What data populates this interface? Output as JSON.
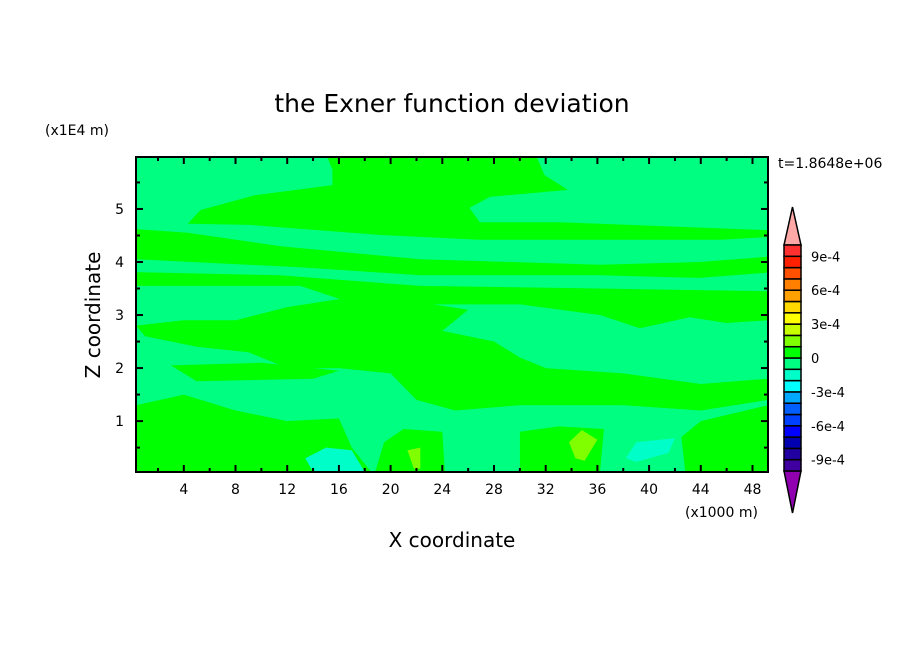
{
  "chart_data": {
    "type": "heatmap",
    "title": "the Exner function deviation",
    "xlabel": "X coordinate",
    "ylabel": "Z coordinate",
    "x_unit": "(x1000 m)",
    "y_unit": "(x1E4 m)",
    "time_label": "t=1.8648e+06",
    "xlim": [
      0.3,
      49.2
    ],
    "ylim": [
      0.04,
      5.98
    ],
    "x_ticks": [
      4,
      8,
      12,
      16,
      20,
      24,
      28,
      32,
      36,
      40,
      44,
      48
    ],
    "y_ticks": [
      1,
      2,
      3,
      4,
      5
    ],
    "background_level": [
      -0.0001,
      0
    ],
    "colorbar": {
      "levels": [
        -0.001,
        -0.0009,
        -0.0008,
        -0.0007,
        -0.0006,
        -0.0005,
        -0.0004,
        -0.0003,
        -0.0002,
        -0.0001,
        0,
        0.0001,
        0.0002,
        0.0003,
        0.0004,
        0.0005,
        0.0006,
        0.0007,
        0.0008,
        0.0009,
        0.001
      ],
      "colors": [
        "#4000a0",
        "#2000a0",
        "#0000b0",
        "#0000ff",
        "#0040ff",
        "#0060ff",
        "#00a8ff",
        "#00ffff",
        "#00ffc8",
        "#00ff80",
        "#00ff00",
        "#80ff00",
        "#c8ff00",
        "#ffff00",
        "#ffd800",
        "#ffa000",
        "#ff8000",
        "#ff5000",
        "#ff2000",
        "#ff3030"
      ],
      "under_color": "#9000b0",
      "over_color": "#ffa8a8",
      "tick_values": [
        0.0009,
        0.0006,
        0.0003,
        0,
        -0.0003,
        -0.0006,
        -0.0009
      ],
      "tick_labels": [
        "9e-4",
        "6e-4",
        "3e-4",
        "0",
        "-3e-4",
        "-6e-4",
        "-9e-4"
      ]
    },
    "regions": [
      {
        "level": [
          0,
          0.0001
        ],
        "points": [
          [
            15.1,
            5.98
          ],
          [
            31.3,
            5.98
          ],
          [
            31.9,
            5.64
          ],
          [
            33.7,
            5.36
          ],
          [
            27.7,
            5.23
          ],
          [
            26.1,
            5.02
          ],
          [
            26.9,
            4.75
          ],
          [
            33.1,
            4.75
          ],
          [
            49.2,
            4.6
          ],
          [
            49.2,
            4.47
          ],
          [
            45.5,
            4.42
          ],
          [
            36.2,
            4.42
          ],
          [
            26.9,
            4.42
          ],
          [
            19.2,
            4.51
          ],
          [
            9.1,
            4.7
          ],
          [
            4.3,
            4.72
          ],
          [
            5.3,
            4.98
          ],
          [
            9.5,
            5.26
          ],
          [
            15.5,
            5.45
          ],
          [
            15.5,
            5.74
          ]
        ]
      },
      {
        "level": [
          0,
          0.0001
        ],
        "points": [
          [
            0.3,
            4.62
          ],
          [
            4.3,
            4.55
          ],
          [
            11.4,
            4.3
          ],
          [
            22.3,
            4.05
          ],
          [
            36.2,
            3.95
          ],
          [
            43.9,
            4.0
          ],
          [
            49.2,
            4.1
          ],
          [
            49.2,
            3.8
          ],
          [
            43.9,
            3.7
          ],
          [
            36.2,
            3.75
          ],
          [
            22.3,
            3.75
          ],
          [
            13,
            3.9
          ],
          [
            0.3,
            4.05
          ]
        ]
      },
      {
        "level": [
          0,
          0.0001
        ],
        "points": [
          [
            0.3,
            3.81
          ],
          [
            11.4,
            3.75
          ],
          [
            22.3,
            3.55
          ],
          [
            36.2,
            3.5
          ],
          [
            49.2,
            3.45
          ],
          [
            49.2,
            3.15
          ],
          [
            43.9,
            3.0
          ],
          [
            39.3,
            2.75
          ],
          [
            36.2,
            3.0
          ],
          [
            30,
            3.2
          ],
          [
            22.3,
            3.2
          ],
          [
            16.1,
            3.3
          ],
          [
            13,
            3.55
          ],
          [
            0.3,
            3.55
          ]
        ]
      },
      {
        "level": [
          0,
          0.0001
        ],
        "points": [
          [
            8,
            2.9
          ],
          [
            12,
            3.15
          ],
          [
            16,
            3.3
          ],
          [
            22,
            3.25
          ],
          [
            26,
            3.1
          ],
          [
            24,
            2.7
          ],
          [
            28,
            2.5
          ],
          [
            30,
            2.2
          ],
          [
            32,
            2.0
          ],
          [
            38,
            1.9
          ],
          [
            44,
            1.7
          ],
          [
            49.2,
            1.8
          ],
          [
            49.2,
            1.4
          ],
          [
            44,
            1.2
          ],
          [
            38,
            1.3
          ],
          [
            30,
            1.3
          ],
          [
            25,
            1.2
          ],
          [
            22,
            1.4
          ],
          [
            20,
            1.9
          ],
          [
            16,
            2.0
          ],
          [
            12,
            2.0
          ],
          [
            9,
            2.3
          ],
          [
            5,
            2.4
          ],
          [
            1,
            2.6
          ],
          [
            0.3,
            2.8
          ],
          [
            4,
            2.9
          ]
        ]
      },
      {
        "level": [
          0,
          0.0001
        ],
        "points": [
          [
            40,
            3.3
          ],
          [
            49.2,
            3.3
          ],
          [
            49.2,
            2.9
          ],
          [
            46,
            2.85
          ],
          [
            42,
            3.0
          ]
        ]
      },
      {
        "level": [
          0,
          0.0001
        ],
        "points": [
          [
            3,
            2.05
          ],
          [
            10,
            2.1
          ],
          [
            16,
            1.95
          ],
          [
            14,
            1.8
          ],
          [
            5,
            1.75
          ]
        ]
      },
      {
        "level": [
          0,
          0.0001
        ],
        "points": [
          [
            0.3,
            1.3
          ],
          [
            4,
            1.5
          ],
          [
            8,
            1.2
          ],
          [
            12,
            1.0
          ],
          [
            16,
            1.05
          ],
          [
            17,
            0.5
          ],
          [
            18.5,
            0.04
          ],
          [
            0.3,
            0.04
          ]
        ]
      },
      {
        "level": [
          0,
          0.0001
        ],
        "points": [
          [
            18.8,
            0.04
          ],
          [
            19.5,
            0.6
          ],
          [
            21,
            0.85
          ],
          [
            24,
            0.8
          ],
          [
            24.2,
            0.04
          ]
        ]
      },
      {
        "level": [
          0,
          0.0001
        ],
        "points": [
          [
            30,
            0.04
          ],
          [
            30,
            0.8
          ],
          [
            33,
            0.9
          ],
          [
            36.5,
            0.85
          ],
          [
            36.2,
            0.04
          ]
        ]
      },
      {
        "level": [
          0,
          0.0001
        ],
        "points": [
          [
            42.8,
            0.04
          ],
          [
            42.5,
            0.7
          ],
          [
            44,
            1.0
          ],
          [
            49.2,
            1.3
          ],
          [
            49.2,
            0.04
          ]
        ]
      },
      {
        "level": [
          0.0001,
          0.0002
        ],
        "points": [
          [
            21.3,
            0.45
          ],
          [
            22.3,
            0.5
          ],
          [
            22.3,
            0.1
          ],
          [
            21.8,
            0.1
          ]
        ]
      },
      {
        "level": [
          0.0001,
          0.0002
        ],
        "points": [
          [
            33.8,
            0.6
          ],
          [
            34.8,
            0.83
          ],
          [
            36,
            0.65
          ],
          [
            35,
            0.25
          ],
          [
            34.3,
            0.3
          ]
        ]
      },
      {
        "level": [
          -0.0002,
          -0.0001
        ],
        "points": [
          [
            13.4,
            0.3
          ],
          [
            15,
            0.5
          ],
          [
            17,
            0.45
          ],
          [
            18,
            0.04
          ],
          [
            14,
            0.04
          ]
        ]
      },
      {
        "level": [
          -0.0002,
          -0.0001
        ],
        "points": [
          [
            38.2,
            0.3
          ],
          [
            39,
            0.6
          ],
          [
            42,
            0.68
          ],
          [
            41.5,
            0.4
          ],
          [
            39,
            0.23
          ]
        ]
      }
    ]
  }
}
